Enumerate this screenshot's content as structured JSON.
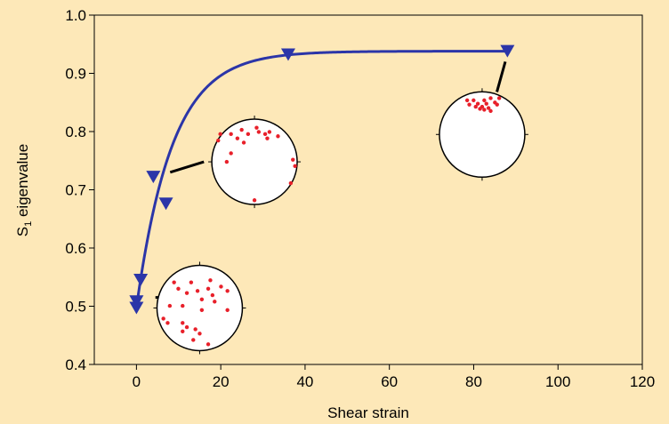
{
  "chart_data": {
    "type": "line",
    "xlabel": "Shear strain",
    "ylabel_main": "S",
    "ylabel_sub": "1",
    "ylabel_rest": " eigenvalue",
    "xlim": [
      -10,
      120
    ],
    "ylim": [
      0.4,
      1.0
    ],
    "xticks": [
      0,
      20,
      40,
      60,
      80,
      100,
      120
    ],
    "yticks": [
      "0.4",
      "0.5",
      "0.6",
      "0.7",
      "0.8",
      "0.9",
      "1.0"
    ],
    "grid": false,
    "colors": {
      "series": "#2b35a8",
      "background": "#fde8b8",
      "stereonet_points": "#e8202a"
    },
    "series": [
      {
        "marker": "triangle-down",
        "points": [
          {
            "x": 0,
            "y": 0.497
          },
          {
            "x": 0,
            "y": 0.508
          },
          {
            "x": 1,
            "y": 0.545
          },
          {
            "x": 4,
            "y": 0.722
          },
          {
            "x": 7,
            "y": 0.676
          },
          {
            "x": 36,
            "y": 0.932
          },
          {
            "x": 88,
            "y": 0.938
          }
        ],
        "fit_curve": {
          "form": "a - b*exp(-x/c)",
          "a": 0.938,
          "b": 0.44,
          "c": 8.5,
          "x_range": [
            0,
            88
          ]
        }
      }
    ],
    "stereonets": [
      {
        "name": "stereonet-low-strain",
        "center": {
          "x": 15,
          "y": 0.497
        },
        "leader": {
          "from": {
            "x": 4.5,
            "y": 0.515
          },
          "to": {
            "x": 11.5,
            "y": 0.515
          }
        },
        "points": [
          [
            -0.6,
            -0.6
          ],
          [
            -0.2,
            -0.6
          ],
          [
            0.25,
            -0.65
          ],
          [
            -0.5,
            -0.45
          ],
          [
            0.2,
            -0.45
          ],
          [
            0.5,
            -0.5
          ],
          [
            -0.3,
            -0.35
          ],
          [
            -0.05,
            -0.4
          ],
          [
            0.3,
            -0.3
          ],
          [
            0.65,
            -0.4
          ],
          [
            0.05,
            -0.2
          ],
          [
            -0.7,
            -0.05
          ],
          [
            -0.4,
            -0.05
          ],
          [
            0.35,
            -0.15
          ],
          [
            0.05,
            0.05
          ],
          [
            0.65,
            0.05
          ],
          [
            -0.85,
            0.25
          ],
          [
            -0.75,
            0.35
          ],
          [
            -0.4,
            0.35
          ],
          [
            -0.3,
            0.45
          ],
          [
            -0.4,
            0.55
          ],
          [
            -0.1,
            0.5
          ],
          [
            0.0,
            0.6
          ],
          [
            -0.15,
            0.75
          ],
          [
            0.2,
            0.85
          ]
        ]
      },
      {
        "name": "stereonet-mid-strain",
        "center": {
          "x": 28,
          "y": 0.748
        },
        "leader": {
          "from": {
            "x": 8,
            "y": 0.73
          },
          "to": {
            "x": 16,
            "y": 0.748
          }
        },
        "points": [
          [
            -0.8,
            -0.65
          ],
          [
            -0.55,
            -0.65
          ],
          [
            -0.3,
            -0.75
          ],
          [
            -0.15,
            -0.65
          ],
          [
            0.05,
            -0.8
          ],
          [
            0.1,
            -0.7
          ],
          [
            0.25,
            -0.65
          ],
          [
            0.35,
            -0.7
          ],
          [
            0.55,
            -0.6
          ],
          [
            -0.85,
            -0.5
          ],
          [
            -0.4,
            -0.55
          ],
          [
            -0.25,
            -0.45
          ],
          [
            0.3,
            -0.55
          ],
          [
            -0.55,
            -0.2
          ],
          [
            -0.65,
            0.0
          ],
          [
            0.9,
            -0.05
          ],
          [
            0.95,
            0.1
          ],
          [
            0.85,
            0.5
          ],
          [
            0.0,
            0.9
          ]
        ]
      },
      {
        "name": "stereonet-high-strain",
        "center": {
          "x": 82,
          "y": 0.795
        },
        "leader": {
          "from": {
            "x": 85.5,
            "y": 0.868
          },
          "to": {
            "x": 87.5,
            "y": 0.92
          }
        },
        "points": [
          [
            -0.35,
            -0.8
          ],
          [
            -0.2,
            -0.8
          ],
          [
            0.05,
            -0.8
          ],
          [
            0.2,
            -0.85
          ],
          [
            0.4,
            -0.85
          ],
          [
            -0.3,
            -0.7
          ],
          [
            -0.1,
            -0.72
          ],
          [
            0.1,
            -0.72
          ],
          [
            0.3,
            -0.75
          ],
          [
            -0.15,
            -0.65
          ],
          [
            0.0,
            -0.65
          ],
          [
            0.15,
            -0.62
          ],
          [
            0.35,
            -0.7
          ],
          [
            0.05,
            -0.58
          ],
          [
            -0.05,
            -0.6
          ],
          [
            0.2,
            -0.55
          ]
        ]
      }
    ]
  }
}
